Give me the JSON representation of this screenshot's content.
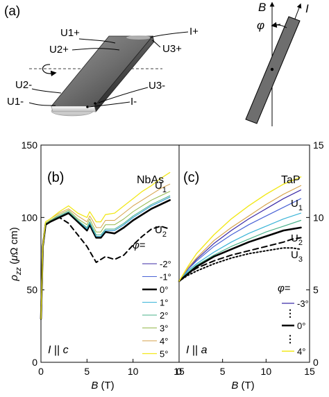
{
  "panel_a": {
    "label": "(a)",
    "contacts": {
      "U1p": "U1+",
      "U2p": "U2+",
      "Ip": "I+",
      "U3p": "U3+",
      "U2m": "U2-",
      "U1m": "U1-",
      "U3m": "U3-",
      "Im": "I-"
    },
    "axis_b": "B",
    "axis_i": "I",
    "angle": "φ"
  },
  "chart_data": [
    {
      "type": "line",
      "panel_label": "(b)",
      "material": "NbAs",
      "condition": "I || c",
      "xlabel": "B (T)",
      "ylabel": "ρzz (μΩ cm)",
      "xlim": [
        0,
        15
      ],
      "ylim": [
        0,
        150
      ],
      "xticks": [
        "0",
        "5",
        "10",
        "15"
      ],
      "yticks": [
        "0",
        "50",
        "100",
        "150"
      ],
      "legend_title": "φ=",
      "legend_entries": [
        "-2°",
        "-1°",
        "0°",
        "1°",
        "2°",
        "3°",
        "4°",
        "5°"
      ],
      "annotations": [
        "U1",
        "U2"
      ],
      "series": [
        {
          "group": "U2",
          "color": "#000000",
          "dash": "7,5",
          "width": 2,
          "x": [
            0,
            0.2,
            0.5,
            1,
            2,
            3,
            4,
            5,
            6,
            7,
            8,
            9,
            10,
            11,
            12,
            13,
            14
          ],
          "y": [
            30,
            80,
            96,
            97,
            100,
            96,
            88,
            80,
            69,
            73,
            71,
            74,
            81,
            87,
            92,
            94,
            92
          ]
        },
        {
          "group": "U1",
          "color": "#3b2aa6",
          "width": 1,
          "label": "-2°",
          "x": [
            0,
            0.2,
            0.5,
            1,
            2,
            3,
            4,
            5,
            5.3,
            5.6,
            6,
            6.5,
            7,
            8,
            9,
            10,
            11,
            12,
            13,
            14
          ],
          "y": [
            30,
            80,
            96,
            98,
            101,
            104,
            98,
            92,
            96,
            92,
            87,
            87,
            91,
            91,
            95,
            100,
            104,
            108,
            111,
            114
          ]
        },
        {
          "group": "U1",
          "color": "#4a63d6",
          "width": 1,
          "label": "-1°",
          "x": [
            0,
            0.2,
            0.5,
            1,
            2,
            3,
            4,
            5,
            5.3,
            5.6,
            6,
            6.5,
            7,
            8,
            9,
            10,
            11,
            12,
            13,
            14
          ],
          "y": [
            30,
            80,
            96,
            98,
            101,
            104,
            98,
            92,
            96,
            92,
            87,
            87,
            91,
            91,
            95,
            100,
            104,
            108,
            111,
            114
          ]
        },
        {
          "group": "U1",
          "color": "#000000",
          "width": 2.6,
          "label": "0°",
          "x": [
            0,
            0.2,
            0.5,
            1,
            2,
            3,
            4,
            5,
            5.3,
            5.6,
            6,
            6.5,
            7,
            8,
            9,
            10,
            11,
            12,
            13,
            14
          ],
          "y": [
            30,
            80,
            95,
            97,
            100,
            103,
            97,
            91,
            95,
            91,
            86,
            86,
            90,
            89,
            93,
            98,
            102,
            106,
            109,
            112
          ]
        },
        {
          "group": "U1",
          "color": "#3ab4d8",
          "width": 1,
          "label": "1°",
          "x": [
            0,
            0.2,
            0.5,
            1,
            2,
            3,
            4,
            5,
            5.3,
            5.6,
            6,
            6.5,
            7,
            8,
            9,
            10,
            11,
            12,
            13,
            14
          ],
          "y": [
            30,
            80,
            96,
            98,
            101,
            104,
            98,
            92,
            96,
            92,
            87,
            87,
            91,
            91,
            95,
            100,
            104,
            108,
            111,
            114
          ]
        },
        {
          "group": "U1",
          "color": "#49b08a",
          "width": 1,
          "label": "2°",
          "x": [
            0,
            0.2,
            0.5,
            1,
            2,
            3,
            4,
            5,
            5.3,
            5.6,
            6,
            6.5,
            7,
            8,
            9,
            10,
            11,
            12,
            13,
            14
          ],
          "y": [
            30,
            80,
            96,
            98,
            101,
            104,
            98,
            93,
            97,
            93,
            88,
            88,
            92,
            92,
            96,
            101,
            105,
            109,
            112,
            115
          ]
        },
        {
          "group": "U1",
          "color": "#93b84a",
          "width": 1,
          "label": "3°",
          "x": [
            0,
            0.2,
            0.5,
            1,
            2,
            3,
            4,
            5,
            5.3,
            5.6,
            6,
            6.5,
            7,
            8,
            9,
            10,
            11,
            12,
            13,
            14
          ],
          "y": [
            30,
            80,
            96,
            98,
            102,
            105,
            99,
            95,
            99,
            95,
            90,
            90,
            95,
            95,
            99,
            104,
            108,
            112,
            115,
            118
          ]
        },
        {
          "group": "U1",
          "color": "#d6a24a",
          "width": 1,
          "label": "4°",
          "x": [
            0,
            0.2,
            0.5,
            1,
            2,
            3,
            4,
            5,
            5.3,
            5.6,
            6,
            6.5,
            7,
            8,
            9,
            10,
            11,
            12,
            13,
            14
          ],
          "y": [
            30,
            80,
            97,
            99,
            103,
            106,
            101,
            97,
            101,
            98,
            93,
            93,
            98,
            98,
            103,
            108,
            112,
            116,
            120,
            123
          ]
        },
        {
          "group": "U1",
          "color": "#f2e81a",
          "width": 1.3,
          "label": "5°",
          "x": [
            0,
            0.2,
            0.5,
            1,
            2,
            3,
            4,
            5,
            5.3,
            5.6,
            6,
            6.5,
            7,
            8,
            9,
            10,
            11,
            12,
            13,
            14
          ],
          "y": [
            30,
            80,
            97,
            99,
            104,
            108,
            103,
            100,
            104,
            101,
            97,
            97,
            102,
            103,
            108,
            113,
            118,
            122,
            127,
            131
          ]
        }
      ]
    },
    {
      "type": "line",
      "panel_label": "(c)",
      "material": "TaP",
      "condition": "I || a",
      "xlabel": "B (T)",
      "ylim": [
        0,
        15
      ],
      "xlim": [
        0,
        15
      ],
      "xticks": [
        "0",
        "5",
        "10",
        "15"
      ],
      "yticks": [
        "0",
        "5",
        "10",
        "15"
      ],
      "legend_title": "φ=",
      "legend_entries": [
        "-3°",
        "0°",
        "4°"
      ],
      "legend_ellipsis": "⋮",
      "annotations": [
        "U1",
        "U2",
        "U3"
      ],
      "series": [
        {
          "group": "U3",
          "color": "#000000",
          "dash": "2,3",
          "width": 2,
          "x": [
            0,
            1,
            2,
            4,
            6,
            8,
            10,
            12,
            13,
            14
          ],
          "y": [
            5.6,
            6.0,
            6.3,
            6.8,
            7.2,
            7.5,
            7.7,
            7.9,
            7.9,
            7.8
          ]
        },
        {
          "group": "U2",
          "color": "#000000",
          "dash": "8,5",
          "width": 2,
          "x": [
            0,
            1,
            2,
            4,
            6,
            8,
            10,
            12,
            13,
            14
          ],
          "y": [
            5.6,
            6.1,
            6.5,
            7.0,
            7.4,
            7.7,
            8.0,
            8.3,
            8.5,
            8.6
          ]
        },
        {
          "group": "U1",
          "color": "#3b2aa6",
          "width": 1.2,
          "label": "-3°",
          "x": [
            0,
            1,
            2,
            4,
            6,
            8,
            10,
            12,
            14
          ],
          "y": [
            5.6,
            6.4,
            7.1,
            8.2,
            9.1,
            9.9,
            10.6,
            11.3,
            11.9
          ]
        },
        {
          "group": "U1",
          "color": "#4a63d6",
          "width": 1.2,
          "x": [
            0,
            1,
            2,
            4,
            6,
            8,
            10,
            12,
            14
          ],
          "y": [
            5.6,
            6.4,
            7.0,
            8.0,
            8.8,
            9.5,
            10.1,
            10.7,
            11.3
          ]
        },
        {
          "group": "U1",
          "color": "#3ab4d8",
          "width": 1.2,
          "x": [
            0,
            1,
            2,
            4,
            6,
            8,
            10,
            12,
            14
          ],
          "y": [
            5.6,
            6.3,
            6.8,
            7.6,
            8.3,
            8.9,
            9.4,
            9.9,
            10.3
          ]
        },
        {
          "group": "U1",
          "color": "#49b08a",
          "width": 1.2,
          "x": [
            0,
            1,
            2,
            4,
            6,
            8,
            10,
            12,
            14
          ],
          "y": [
            5.6,
            6.2,
            6.7,
            7.4,
            8.0,
            8.5,
            9.0,
            9.4,
            9.8
          ]
        },
        {
          "group": "U1",
          "color": "#000000",
          "width": 2.6,
          "label": "0°",
          "x": [
            0,
            1,
            2,
            4,
            6,
            8,
            10,
            12,
            14
          ],
          "y": [
            5.6,
            6.1,
            6.6,
            7.3,
            7.8,
            8.3,
            8.7,
            9.1,
            9.3
          ]
        },
        {
          "group": "U1",
          "color": "#d6a24a",
          "width": 1.2,
          "x": [
            0,
            1,
            2,
            4,
            6,
            8,
            10,
            12,
            14
          ],
          "y": [
            5.6,
            6.5,
            7.2,
            8.4,
            9.3,
            10.1,
            10.9,
            11.6,
            12.2
          ]
        },
        {
          "group": "U1",
          "color": "#f2e81a",
          "width": 1.4,
          "label": "4°",
          "x": [
            0,
            1,
            2,
            4,
            6,
            8,
            10,
            12,
            14
          ],
          "y": [
            5.6,
            6.6,
            7.5,
            8.8,
            9.9,
            10.8,
            11.6,
            12.3,
            12.8
          ]
        }
      ]
    }
  ]
}
